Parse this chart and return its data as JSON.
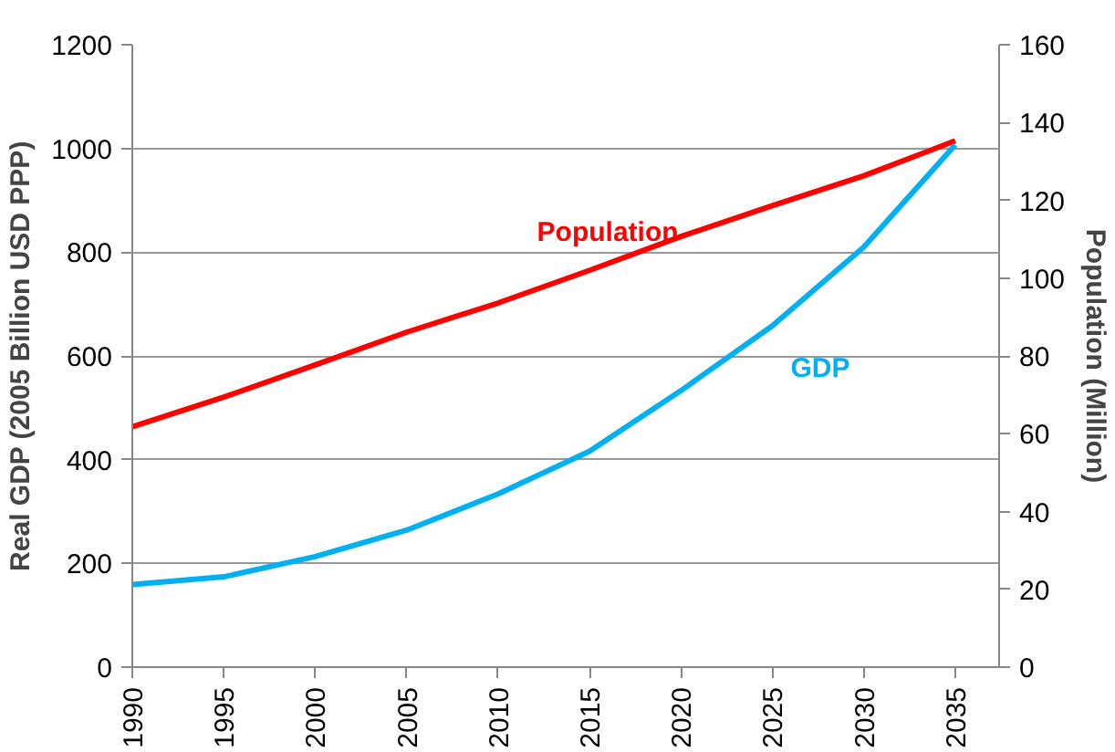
{
  "chart_data": {
    "type": "line",
    "x": [
      1990,
      1995,
      2000,
      2005,
      2010,
      2015,
      2020,
      2025,
      2030,
      2035
    ],
    "series": [
      {
        "name": "Population",
        "color": "#ff0000",
        "axis": "y2",
        "values": [
          61.8,
          69.4,
          77.7,
          86.1,
          93.6,
          102,
          110.7,
          118.6,
          126.3,
          135.3
        ]
      },
      {
        "name": "GDP",
        "color": "#00b0f0",
        "values": [
          159,
          174,
          213,
          264,
          334,
          416,
          533,
          658,
          810,
          1007
        ]
      }
    ],
    "ylabel": "Real GDP (2005 Billion USD PPP)",
    "y2label": "Population (Million)",
    "xlim": [
      1990,
      2037.4
    ],
    "xticks": [
      1990,
      1995,
      2000,
      2005,
      2010,
      2015,
      2020,
      2025,
      2030,
      2035
    ],
    "ylim": [
      0,
      1200
    ],
    "yticks": [
      0,
      200,
      400,
      600,
      800,
      1000,
      1200
    ],
    "y2lim": [
      0,
      160
    ],
    "y2ticks": [
      0,
      20,
      40,
      60,
      80,
      100,
      120,
      140,
      160
    ],
    "grid": "y",
    "marker": "none",
    "line_style": "solid"
  }
}
